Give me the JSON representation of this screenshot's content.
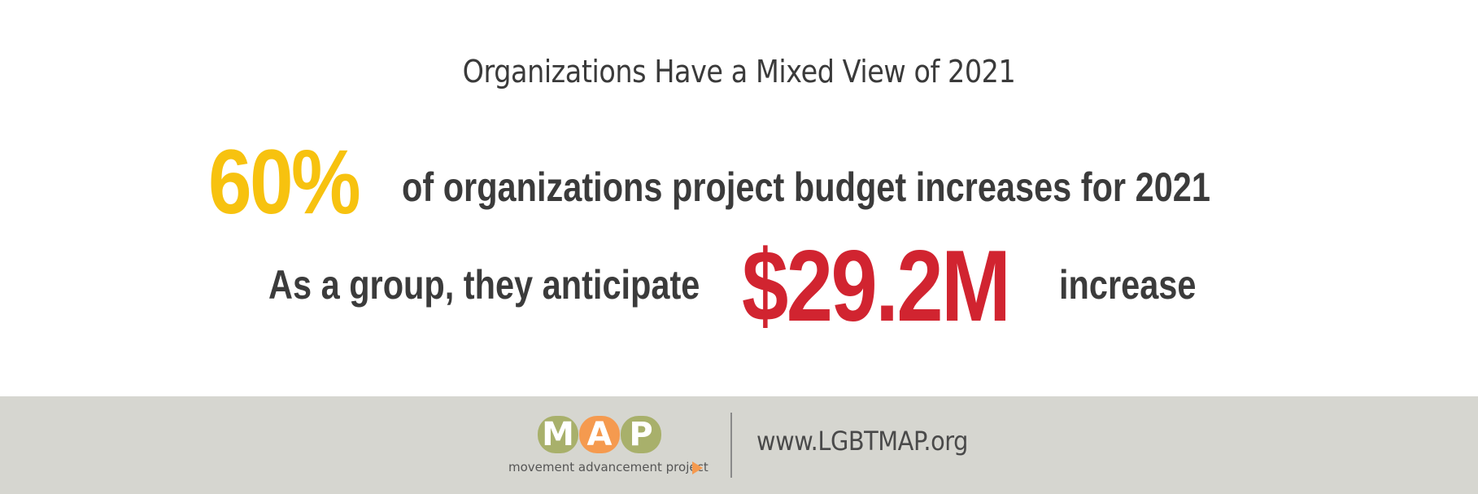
{
  "title": "Organizations Have a Mixed View of 2021",
  "stat1": {
    "value": "60%",
    "text": "of organizations project budget increases for 2021"
  },
  "stat2": {
    "prefix": "As a group, they anticipate",
    "value": "$29.2M",
    "suffix": "increase"
  },
  "footer": {
    "logo": {
      "letters": [
        "M",
        "A",
        "P"
      ],
      "tagline": "movement advancement project",
      "icon": "play-arrow-icon"
    },
    "url": "www.LGBTMAP.org"
  },
  "colors": {
    "yellow": "#f7c20f",
    "red": "#d12430",
    "dark_text": "#3b3b3b",
    "footer_bg": "#d6d6d0",
    "logo_green": "#a8b06b",
    "logo_orange": "#f59a4f"
  }
}
